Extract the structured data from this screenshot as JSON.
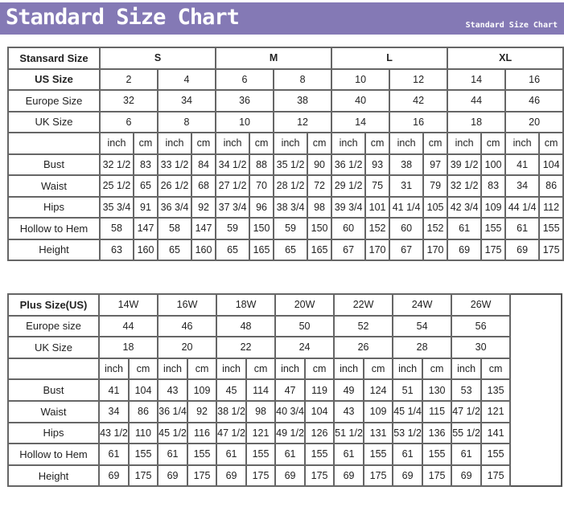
{
  "header": {
    "title": "Standard Size Chart",
    "subtitle": "Standard Size Chart",
    "color": "#8479b5"
  },
  "standard": {
    "header_label": "Stansard Size",
    "groups": [
      "S",
      "M",
      "L",
      "XL"
    ],
    "us_label": "US Size",
    "us": [
      "2",
      "4",
      "6",
      "8",
      "10",
      "12",
      "14",
      "16"
    ],
    "europe_label": "Europe Size",
    "europe": [
      "32",
      "34",
      "36",
      "38",
      "40",
      "42",
      "44",
      "46"
    ],
    "uk_label": "UK Size",
    "uk": [
      "6",
      "8",
      "10",
      "12",
      "14",
      "16",
      "18",
      "20"
    ],
    "units": [
      "inch",
      "cm"
    ],
    "rows": [
      {
        "label": "Bust",
        "values": [
          "32 1/2",
          "83",
          "33 1/2",
          "84",
          "34 1/2",
          "88",
          "35 1/2",
          "90",
          "36 1/2",
          "93",
          "38",
          "97",
          "39 1/2",
          "100",
          "41",
          "104"
        ]
      },
      {
        "label": "Waist",
        "values": [
          "25 1/2",
          "65",
          "26 1/2",
          "68",
          "27 1/2",
          "70",
          "28 1/2",
          "72",
          "29 1/2",
          "75",
          "31",
          "79",
          "32 1/2",
          "83",
          "34",
          "86"
        ]
      },
      {
        "label": "Hips",
        "values": [
          "35 3/4",
          "91",
          "36 3/4",
          "92",
          "37 3/4",
          "96",
          "38 3/4",
          "98",
          "39 3/4",
          "101",
          "41 1/4",
          "105",
          "42 3/4",
          "109",
          "44 1/4",
          "112"
        ]
      },
      {
        "label": "Hollow to Hem",
        "values": [
          "58",
          "147",
          "58",
          "147",
          "59",
          "150",
          "59",
          "150",
          "60",
          "152",
          "60",
          "152",
          "61",
          "155",
          "61",
          "155"
        ]
      },
      {
        "label": "Height",
        "values": [
          "63",
          "160",
          "65",
          "160",
          "65",
          "165",
          "65",
          "165",
          "67",
          "170",
          "67",
          "170",
          "69",
          "175",
          "69",
          "175"
        ]
      }
    ]
  },
  "plus": {
    "header_label": "Plus Size(US)",
    "sizes": [
      "14W",
      "16W",
      "18W",
      "20W",
      "22W",
      "24W",
      "26W"
    ],
    "europe_label": "Europe size",
    "europe": [
      "44",
      "46",
      "48",
      "50",
      "52",
      "54",
      "56"
    ],
    "uk_label": "UK Size",
    "uk": [
      "18",
      "20",
      "22",
      "24",
      "26",
      "28",
      "30"
    ],
    "units": [
      "inch",
      "cm"
    ],
    "rows": [
      {
        "label": "Bust",
        "values": [
          "41",
          "104",
          "43",
          "109",
          "45",
          "114",
          "47",
          "119",
          "49",
          "124",
          "51",
          "130",
          "53",
          "135"
        ]
      },
      {
        "label": "Waist",
        "values": [
          "34",
          "86",
          "36 1/4",
          "92",
          "38 1/2",
          "98",
          "40 3/4",
          "104",
          "43",
          "109",
          "45 1/4",
          "115",
          "47 1/2",
          "121"
        ]
      },
      {
        "label": "Hips",
        "values": [
          "43 1/2",
          "110",
          "45 1/2",
          "116",
          "47 1/2",
          "121",
          "49 1/2",
          "126",
          "51 1/2",
          "131",
          "53 1/2",
          "136",
          "55 1/2",
          "141"
        ]
      },
      {
        "label": "Hollow to Hem",
        "values": [
          "61",
          "155",
          "61",
          "155",
          "61",
          "155",
          "61",
          "155",
          "61",
          "155",
          "61",
          "155",
          "61",
          "155"
        ]
      },
      {
        "label": "Height",
        "values": [
          "69",
          "175",
          "69",
          "175",
          "69",
          "175",
          "69",
          "175",
          "69",
          "175",
          "69",
          "175",
          "69",
          "175"
        ]
      }
    ]
  }
}
